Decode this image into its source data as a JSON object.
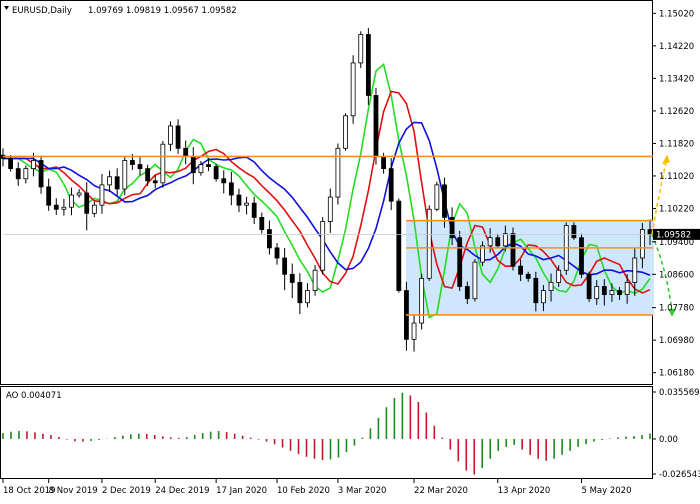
{
  "header": {
    "symbol": "EURUSD,Daily",
    "ohlc": "1.09769 1.09819 1.09567 1.09582"
  },
  "price_axis": {
    "ticks": [
      "1.15020",
      "1.14220",
      "1.13420",
      "1.12620",
      "1.11820",
      "1.11020",
      "1.10220",
      "1.09400",
      "1.08600",
      "1.07780",
      "1.06980",
      "1.06180"
    ],
    "current_price_label": "1.09582"
  },
  "oscillator": {
    "label": "AO 0.004071",
    "ticks": [
      "0.035569",
      "0.00",
      "-0.026543"
    ]
  },
  "time_axis": {
    "ticks": [
      "18 Oct 2019",
      "8 Nov 2019",
      "2 Dec 2019",
      "24 Dec 2019",
      "17 Jan 2020",
      "10 Feb 2020",
      "3 Mar 2020",
      "22 Mar 2020",
      "13 Apr 2020",
      "5 May 2020"
    ]
  },
  "colors": {
    "candle": "#000000",
    "ma_fast": "#22dd22",
    "ma_mid": "#e01010",
    "ma_slow": "#1010dd",
    "level_lines": "#ff8c1a",
    "range_fill": "#cfe6ff",
    "arrow_up": "#ffc000",
    "arrow_down": "#33cc33",
    "ao_up": "#1a8a1a",
    "ao_down": "#c0182a"
  },
  "chart_data": {
    "type": "candlestick",
    "instrument": "EURUSD",
    "timeframe": "Daily",
    "last_bar": {
      "open": 1.09769,
      "high": 1.09819,
      "low": 1.09567,
      "close": 1.09582
    },
    "y_range": [
      1.0595,
      1.1525
    ],
    "resistance_level": 1.115,
    "support_level": 1.076,
    "range_box": {
      "top": 1.0992,
      "bottom": 1.076,
      "from": "22 Mar 2020",
      "to": "5 May 2020"
    },
    "mid_level": 1.0925,
    "close_path": [
      [
        "18 Oct 2019",
        1.1145
      ],
      [
        "22 Oct 2019",
        1.112
      ],
      [
        "26 Oct 2019",
        1.1095
      ],
      [
        "30 Oct 2019",
        1.112
      ],
      [
        "3 Nov 2019",
        1.114
      ],
      [
        "6 Nov 2019",
        1.1075
      ],
      [
        "8 Nov 2019",
        1.103
      ],
      [
        "11 Nov 2019",
        1.102
      ],
      [
        "14 Nov 2019",
        1.1025
      ],
      [
        "18 Nov 2019",
        1.1055
      ],
      [
        "21 Nov 2019",
        1.106
      ],
      [
        "25 Nov 2019",
        1.101
      ],
      [
        "29 Nov 2019",
        1.103
      ],
      [
        "2 Dec 2019",
        1.108
      ],
      [
        "5 Dec 2019",
        1.11
      ],
      [
        "9 Dec 2019",
        1.107
      ],
      [
        "12 Dec 2019",
        1.114
      ],
      [
        "16 Dec 2019",
        1.113
      ],
      [
        "19 Dec 2019",
        1.112
      ],
      [
        "21 Dec 2019",
        1.109
      ],
      [
        "24 Dec 2019",
        1.1085
      ],
      [
        "27 Dec 2019",
        1.118
      ],
      [
        "30 Dec 2019",
        1.1225
      ],
      [
        "2 Jan 2020",
        1.117
      ],
      [
        "5 Jan 2020",
        1.115
      ],
      [
        "8 Jan 2020",
        1.111
      ],
      [
        "11 Jan 2020",
        1.113
      ],
      [
        "14 Jan 2020",
        1.1125
      ],
      [
        "17 Jan 2020",
        1.1095
      ],
      [
        "20 Jan 2020",
        1.1085
      ],
      [
        "23 Jan 2020",
        1.1055
      ],
      [
        "26 Jan 2020",
        1.103
      ],
      [
        "29 Jan 2020",
        1.1035
      ],
      [
        "1 Feb 2020",
        1.1
      ],
      [
        "4 Feb 2020",
        1.097
      ],
      [
        "7 Feb 2020",
        1.0925
      ],
      [
        "10 Feb 2020",
        1.09
      ],
      [
        "13 Feb 2020",
        1.086
      ],
      [
        "16 Feb 2020",
        1.084
      ],
      [
        "19 Feb 2020",
        1.079
      ],
      [
        "22 Feb 2020",
        1.082
      ],
      [
        "25 Feb 2020",
        1.087
      ],
      [
        "28 Feb 2020",
        1.099
      ],
      [
        "1 Mar 2020",
        1.105
      ],
      [
        "3 Mar 2020",
        1.117
      ],
      [
        "5 Mar 2020",
        1.125
      ],
      [
        "7 Mar 2020",
        1.138
      ],
      [
        "9 Mar 2020",
        1.145
      ],
      [
        "11 Mar 2020",
        1.13
      ],
      [
        "13 Mar 2020",
        1.115
      ],
      [
        "15 Mar 2020",
        1.112
      ],
      [
        "17 Mar 2020",
        1.104
      ],
      [
        "19 Mar 2020",
        1.082
      ],
      [
        "20 Mar 2020",
        1.07
      ],
      [
        "22 Mar 2020",
        1.074
      ],
      [
        "24 Mar 2020",
        1.085
      ],
      [
        "26 Mar 2020",
        1.102
      ],
      [
        "28 Mar 2020",
        1.108
      ],
      [
        "30 Mar 2020",
        1.1
      ],
      [
        "1 Apr 2020",
        1.095
      ],
      [
        "3 Apr 2020",
        1.083
      ],
      [
        "5 Apr 2020",
        1.08
      ],
      [
        "7 Apr 2020",
        1.089
      ],
      [
        "9 Apr 2020",
        1.093
      ],
      [
        "11 Apr 2020",
        1.095
      ],
      [
        "13 Apr 2020",
        1.093
      ],
      [
        "15 Apr 2020",
        1.096
      ],
      [
        "17 Apr 2020",
        1.088
      ],
      [
        "19 Apr 2020",
        1.086
      ],
      [
        "21 Apr 2020",
        1.085
      ],
      [
        "23 Apr 2020",
        1.079
      ],
      [
        "25 Apr 2020",
        1.082
      ],
      [
        "27 Apr 2020",
        1.084
      ],
      [
        "29 Apr 2020",
        1.087
      ],
      [
        "1 May 2020",
        1.098
      ],
      [
        "3 May 2020",
        1.095
      ],
      [
        "5 May 2020",
        1.086
      ],
      [
        "7 May 2020",
        1.08
      ],
      [
        "9 May 2020",
        1.083
      ],
      [
        "11 May 2020",
        1.081
      ],
      [
        "13 May 2020",
        1.082
      ],
      [
        "15 May 2020",
        1.081
      ],
      [
        "17 May 2020",
        1.084
      ],
      [
        "19 May 2020",
        1.09
      ],
      [
        "21 May 2020",
        1.097
      ],
      [
        "22 May 2020",
        1.0958
      ]
    ],
    "ao_values": [
      0.0045,
      0.0055,
      0.006,
      0.0058,
      0.005,
      0.004,
      0.003,
      0.0015,
      -0.0005,
      -0.0018,
      -0.002,
      -0.0015,
      -0.0008,
      0.0002,
      0.0015,
      0.0025,
      0.0035,
      0.004,
      0.0038,
      0.003,
      0.002,
      0.0012,
      0.0008,
      0.0015,
      0.003,
      0.0045,
      0.0055,
      0.006,
      0.0052,
      0.004,
      0.0025,
      0.001,
      -0.0005,
      -0.002,
      -0.004,
      -0.0065,
      -0.009,
      -0.0115,
      -0.0135,
      -0.015,
      -0.016,
      -0.0155,
      -0.014,
      -0.01,
      -0.005,
      0.001,
      0.008,
      0.016,
      0.024,
      0.031,
      0.035,
      0.033,
      0.028,
      0.02,
      0.01,
      0.001,
      -0.008,
      -0.017,
      -0.024,
      -0.027,
      -0.022,
      -0.015,
      -0.009,
      -0.006,
      -0.0045,
      -0.008,
      -0.012,
      -0.015,
      -0.0165,
      -0.015,
      -0.012,
      -0.009,
      -0.006,
      -0.004,
      -0.002,
      -0.0008,
      0.0005,
      0.0012,
      0.0018,
      0.0022,
      0.003,
      0.0041
    ]
  }
}
